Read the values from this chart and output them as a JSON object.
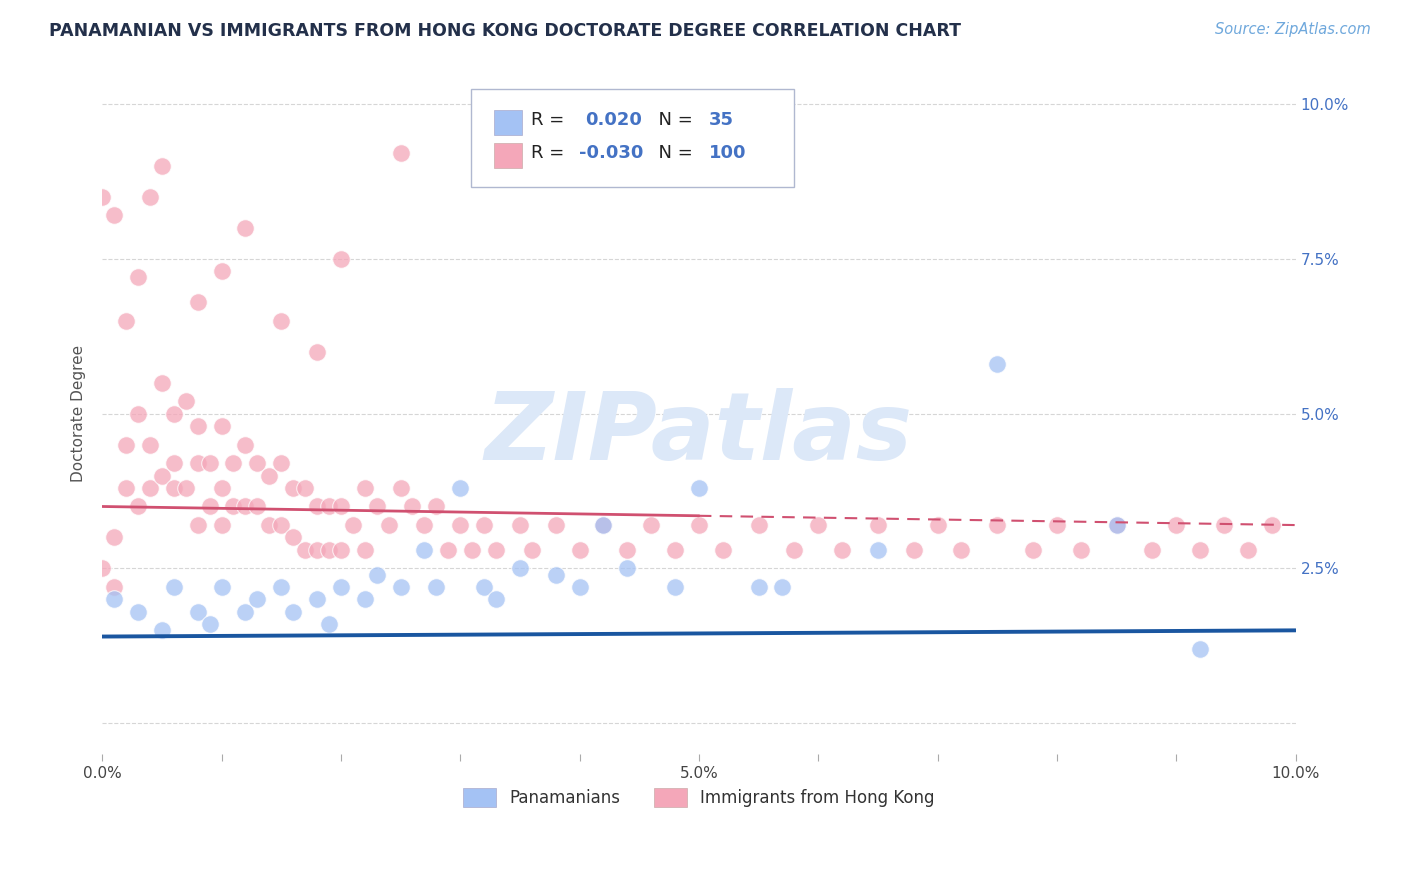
{
  "title": "PANAMANIAN VS IMMIGRANTS FROM HONG KONG DOCTORATE DEGREE CORRELATION CHART",
  "source": "Source: ZipAtlas.com",
  "ylabel": "Doctorate Degree",
  "xlim": [
    0.0,
    0.1
  ],
  "ylim": [
    -0.005,
    0.105
  ],
  "color_blue": "#a4c2f4",
  "color_pink": "#f4a7b9",
  "color_line_blue": "#1a56a0",
  "color_line_pink": "#d05070",
  "color_title": "#23304a",
  "color_source": "#6fa8dc",
  "color_watermark": "#dce8f8",
  "color_axis_right": "#4472c4",
  "watermark": "ZIPatlas",
  "blue_x": [
    0.001,
    0.003,
    0.005,
    0.006,
    0.008,
    0.009,
    0.01,
    0.012,
    0.013,
    0.015,
    0.016,
    0.018,
    0.019,
    0.02,
    0.022,
    0.023,
    0.025,
    0.027,
    0.028,
    0.03,
    0.032,
    0.033,
    0.035,
    0.038,
    0.04,
    0.042,
    0.044,
    0.048,
    0.05,
    0.055,
    0.057,
    0.065,
    0.075,
    0.085,
    0.092
  ],
  "blue_y": [
    0.02,
    0.018,
    0.015,
    0.022,
    0.018,
    0.016,
    0.022,
    0.018,
    0.02,
    0.022,
    0.018,
    0.02,
    0.016,
    0.022,
    0.02,
    0.024,
    0.022,
    0.028,
    0.022,
    0.038,
    0.022,
    0.02,
    0.025,
    0.024,
    0.022,
    0.032,
    0.025,
    0.022,
    0.038,
    0.022,
    0.022,
    0.028,
    0.058,
    0.032,
    0.012
  ],
  "pink_x": [
    0.0,
    0.001,
    0.001,
    0.002,
    0.002,
    0.003,
    0.003,
    0.004,
    0.004,
    0.005,
    0.005,
    0.006,
    0.006,
    0.006,
    0.007,
    0.007,
    0.008,
    0.008,
    0.008,
    0.009,
    0.009,
    0.01,
    0.01,
    0.01,
    0.011,
    0.011,
    0.012,
    0.012,
    0.013,
    0.013,
    0.014,
    0.014,
    0.015,
    0.015,
    0.016,
    0.016,
    0.017,
    0.017,
    0.018,
    0.018,
    0.019,
    0.019,
    0.02,
    0.02,
    0.021,
    0.022,
    0.022,
    0.023,
    0.024,
    0.025,
    0.026,
    0.027,
    0.028,
    0.029,
    0.03,
    0.031,
    0.032,
    0.033,
    0.035,
    0.036,
    0.038,
    0.04,
    0.042,
    0.044,
    0.046,
    0.048,
    0.05,
    0.052,
    0.055,
    0.058,
    0.06,
    0.062,
    0.065,
    0.068,
    0.07,
    0.072,
    0.075,
    0.078,
    0.08,
    0.082,
    0.085,
    0.088,
    0.09,
    0.092,
    0.094,
    0.096,
    0.098,
    0.0,
    0.003,
    0.002,
    0.001,
    0.004,
    0.005,
    0.008,
    0.01,
    0.012,
    0.015,
    0.018,
    0.02,
    0.025
  ],
  "pink_y": [
    0.025,
    0.03,
    0.022,
    0.038,
    0.045,
    0.05,
    0.035,
    0.045,
    0.038,
    0.055,
    0.04,
    0.05,
    0.038,
    0.042,
    0.052,
    0.038,
    0.048,
    0.042,
    0.032,
    0.042,
    0.035,
    0.048,
    0.038,
    0.032,
    0.042,
    0.035,
    0.045,
    0.035,
    0.042,
    0.035,
    0.04,
    0.032,
    0.042,
    0.032,
    0.038,
    0.03,
    0.038,
    0.028,
    0.035,
    0.028,
    0.035,
    0.028,
    0.035,
    0.028,
    0.032,
    0.038,
    0.028,
    0.035,
    0.032,
    0.038,
    0.035,
    0.032,
    0.035,
    0.028,
    0.032,
    0.028,
    0.032,
    0.028,
    0.032,
    0.028,
    0.032,
    0.028,
    0.032,
    0.028,
    0.032,
    0.028,
    0.032,
    0.028,
    0.032,
    0.028,
    0.032,
    0.028,
    0.032,
    0.028,
    0.032,
    0.028,
    0.032,
    0.028,
    0.032,
    0.028,
    0.032,
    0.028,
    0.032,
    0.028,
    0.032,
    0.028,
    0.032,
    0.085,
    0.072,
    0.065,
    0.082,
    0.085,
    0.09,
    0.068,
    0.073,
    0.08,
    0.065,
    0.06,
    0.075,
    0.092
  ]
}
